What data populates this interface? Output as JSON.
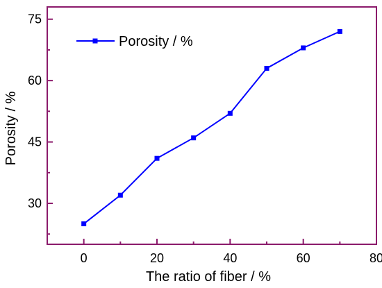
{
  "chart_data": {
    "type": "line",
    "xlabel": "The ratio of fiber / %",
    "ylabel": "Porosity / %",
    "xlim": [
      -10,
      80
    ],
    "ylim": [
      20,
      78
    ],
    "xticks": [
      0,
      20,
      40,
      60,
      80
    ],
    "yticks": [
      30,
      45,
      60,
      75
    ],
    "x_minor_step": 10,
    "y_minor_step": 7.5,
    "grid": false,
    "legend": "top-left",
    "colors": {
      "frame": "#8B1A6B",
      "series": "#0000FF"
    },
    "series": [
      {
        "name": "Porosity / %",
        "marker": "square",
        "x": [
          0,
          10,
          20,
          30,
          40,
          50,
          60,
          70
        ],
        "y": [
          25,
          32,
          41,
          46,
          52,
          63,
          68,
          72
        ]
      }
    ]
  }
}
